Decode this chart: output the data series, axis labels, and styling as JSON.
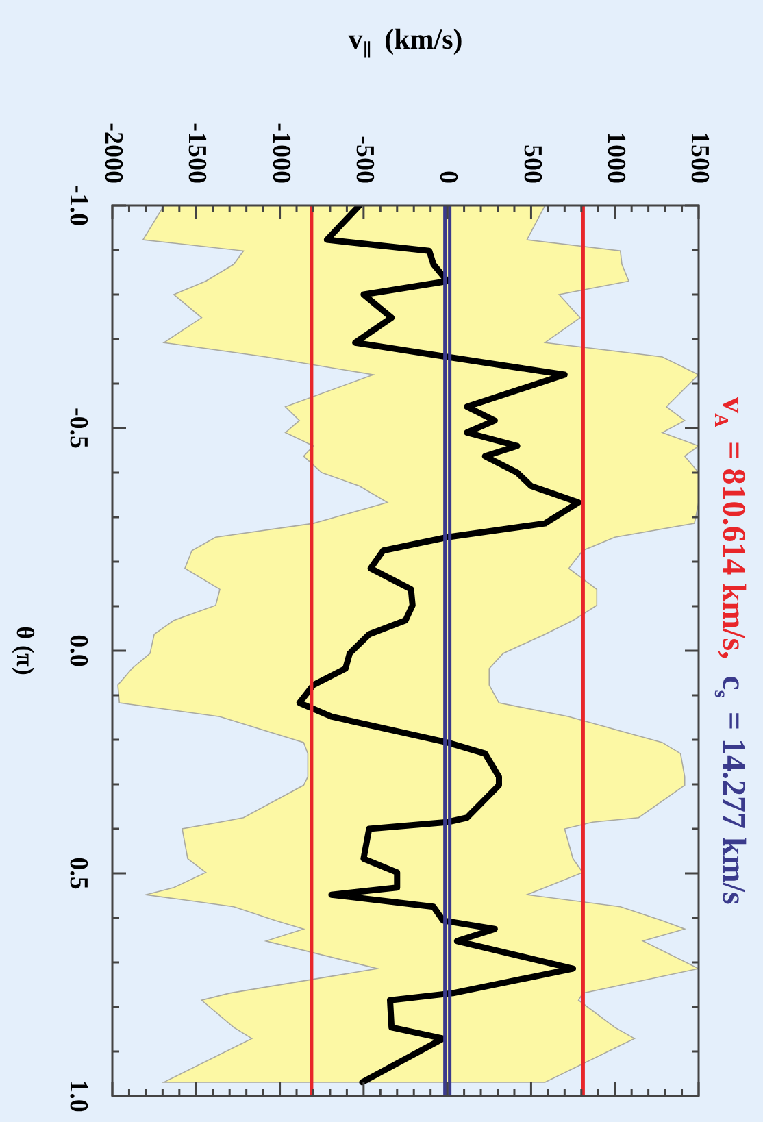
{
  "chart_data": {
    "type": "line",
    "title": "v$_{A}$ = 810.614 km/s, c$_{s}$ = 14.277 km/s",
    "xlabel": "v$_{∥}$ (km/s)",
    "ylabel": "θ (π)",
    "xlim": [
      -2000,
      1500
    ],
    "xticks": [
      -2000,
      {
        "value": -1900,
        "label": null
      },
      {
        "value": -1800,
        "label": null
      },
      {
        "value": -1700,
        "label": null
      },
      {
        "value": -1600,
        "label": null
      },
      -1500,
      {
        "value": -1400,
        "label": null
      },
      {
        "value": -1300,
        "label": null
      },
      {
        "value": -1200,
        "label": null
      },
      {
        "value": -1100,
        "label": null
      },
      -1000,
      {
        "value": -900,
        "label": null
      },
      {
        "value": -800,
        "label": null
      },
      {
        "value": -700,
        "label": null
      },
      {
        "value": -600,
        "label": null
      },
      -500,
      {
        "value": -400,
        "label": null
      },
      {
        "value": -300,
        "label": null
      },
      {
        "value": -200,
        "label": null
      },
      {
        "value": -100,
        "label": null
      },
      0,
      {
        "value": 100,
        "label": null
      },
      {
        "value": 200,
        "label": null
      },
      {
        "value": 300,
        "label": null
      },
      {
        "value": 400,
        "label": null
      },
      500,
      {
        "value": 600,
        "label": null
      },
      {
        "value": 700,
        "label": null
      },
      {
        "value": 800,
        "label": null
      },
      {
        "value": 900,
        "label": null
      },
      1000,
      {
        "value": 1100,
        "label": null
      },
      {
        "value": 1200,
        "label": null
      },
      {
        "value": 1300,
        "label": null
      },
      {
        "value": 1400,
        "label": null
      },
      1500
    ],
    "ylim": [
      1,
      -1
    ],
    "yticks": [
      {
        "value": -1,
        "label": "-1.0"
      },
      {
        "value": -0.9,
        "label": null
      },
      {
        "value": -0.8,
        "label": null
      },
      {
        "value": -0.7,
        "label": null
      },
      {
        "value": -0.6,
        "label": null
      },
      {
        "value": -0.5,
        "label": "-0.5"
      },
      {
        "value": -0.4,
        "label": null
      },
      {
        "value": -0.3,
        "label": null
      },
      {
        "value": -0.2,
        "label": null
      },
      {
        "value": -0.1,
        "label": null
      },
      {
        "value": 0,
        "label": "0.0"
      },
      {
        "value": 0.1,
        "label": null
      },
      {
        "value": 0.2,
        "label": null
      },
      {
        "value": 0.3,
        "label": null
      },
      {
        "value": 0.4,
        "label": null
      },
      {
        "value": 0.5,
        "label": "0.5"
      },
      {
        "value": 0.6,
        "label": null
      },
      {
        "value": 0.7,
        "label": null
      },
      {
        "value": 0.8,
        "label": null
      },
      {
        "value": 0.9,
        "label": null
      },
      {
        "value": 1,
        "label": "1.0"
      }
    ],
    "series": [
      {
        "type": "area",
        "color": "#fcf8a4",
        "x": [
          583,
          475,
          1033,
          1042,
          1083,
          667,
          792,
          583,
          1283,
          1500,
          1308,
          1417,
          1283,
          1500,
          1417,
          1500,
          1500,
          1475,
          1000,
          808,
          725,
          892,
          892,
          750,
          583,
          333,
          250,
          250,
          308,
          725,
          1283,
          1392,
          1417,
          1417,
          1142,
          867,
          700,
          750,
          808,
          583,
          475,
          1033,
          1283,
          1417,
          1167,
          1500,
          808,
          783,
          1000,
          1117,
          583,
          -1692,
          -1167,
          -1275,
          -1467,
          -1300,
          -417,
          -1083,
          -858,
          -1025,
          -1275,
          -1800,
          -1633,
          -1442,
          -1550,
          -1583,
          -1358,
          -1217,
          -858,
          -833,
          -833,
          -858,
          -1358,
          -1958,
          -1967,
          -1883,
          -1775,
          -1750,
          -1633,
          -1383,
          -1358,
          -1567,
          -1525,
          -1383,
          -800,
          -358,
          -525,
          -750,
          -858,
          -800,
          -967,
          -883,
          -967,
          -442,
          -1083,
          -1692,
          -1467,
          -1633,
          -1442,
          -1275,
          -1217,
          -1817,
          -1692
        ],
        "values": [
          -1.0,
          -0.923,
          -0.898,
          -0.868,
          -0.83,
          -0.8,
          -0.748,
          -0.692,
          -0.66,
          -0.62,
          -0.548,
          -0.517,
          -0.49,
          -0.46,
          -0.437,
          -0.4,
          -0.333,
          -0.286,
          -0.255,
          -0.225,
          -0.185,
          -0.138,
          -0.102,
          -0.068,
          -0.037,
          0.006,
          0.04,
          0.077,
          0.117,
          0.148,
          0.206,
          0.231,
          0.283,
          0.302,
          0.375,
          0.385,
          0.4,
          0.467,
          0.498,
          0.532,
          0.548,
          0.575,
          0.606,
          0.625,
          0.652,
          0.714,
          0.769,
          0.785,
          0.846,
          0.871,
          0.969,
          0.969,
          0.871,
          0.846,
          0.785,
          0.769,
          0.714,
          0.652,
          0.625,
          0.606,
          0.575,
          0.548,
          0.532,
          0.498,
          0.467,
          0.4,
          0.385,
          0.375,
          0.302,
          0.283,
          0.231,
          0.206,
          0.148,
          0.117,
          0.077,
          0.04,
          0.006,
          -0.037,
          -0.068,
          -0.102,
          -0.138,
          -0.185,
          -0.225,
          -0.255,
          -0.286,
          -0.333,
          -0.37,
          -0.4,
          -0.437,
          -0.46,
          -0.49,
          -0.517,
          -0.548,
          -0.62,
          -0.66,
          -0.692,
          -0.748,
          -0.8,
          -0.83,
          -0.868,
          -0.898,
          -0.923,
          -1.0
        ]
      },
      {
        "color": "#000000",
        "x": [
          -525,
          -719,
          -108,
          -83,
          0,
          -500,
          -333,
          -550,
          0,
          700,
          117,
          283,
          117,
          417,
          225,
          417,
          500,
          783,
          583,
          0,
          -383,
          -458,
          -217,
          -208,
          -250,
          -467,
          -583,
          -608,
          -800,
          -883,
          -692,
          0,
          225,
          308,
          308,
          117,
          0,
          -467,
          -500,
          -300,
          -300,
          -692,
          -83,
          -25,
          283,
          58,
          750,
          33,
          -342,
          -333,
          -25,
          -508
        ],
        "values": [
          -1.0,
          -0.923,
          -0.898,
          -0.868,
          -0.83,
          -0.8,
          -0.748,
          -0.692,
          -0.66,
          -0.62,
          -0.548,
          -0.517,
          -0.49,
          -0.46,
          -0.437,
          -0.4,
          -0.37,
          -0.333,
          -0.286,
          -0.255,
          -0.225,
          -0.185,
          -0.138,
          -0.102,
          -0.068,
          -0.037,
          0.006,
          0.04,
          0.077,
          0.117,
          0.148,
          0.206,
          0.231,
          0.283,
          0.302,
          0.375,
          0.385,
          0.4,
          0.467,
          0.498,
          0.532,
          0.548,
          0.575,
          0.606,
          0.625,
          0.652,
          0.714,
          0.769,
          0.785,
          0.846,
          0.871,
          0.969
        ]
      }
    ],
    "ref_lines": [
      {
        "axis": "x",
        "value": 810.614,
        "color": "#e8262a"
      },
      {
        "axis": "x",
        "value": -810.614,
        "color": "#e8262a"
      },
      {
        "axis": "x",
        "value": 14.277,
        "color": "#3a3a8c"
      },
      {
        "axis": "x",
        "value": -14.277,
        "color": "#3a3a8c"
      }
    ],
    "legend": false,
    "grid": false
  }
}
